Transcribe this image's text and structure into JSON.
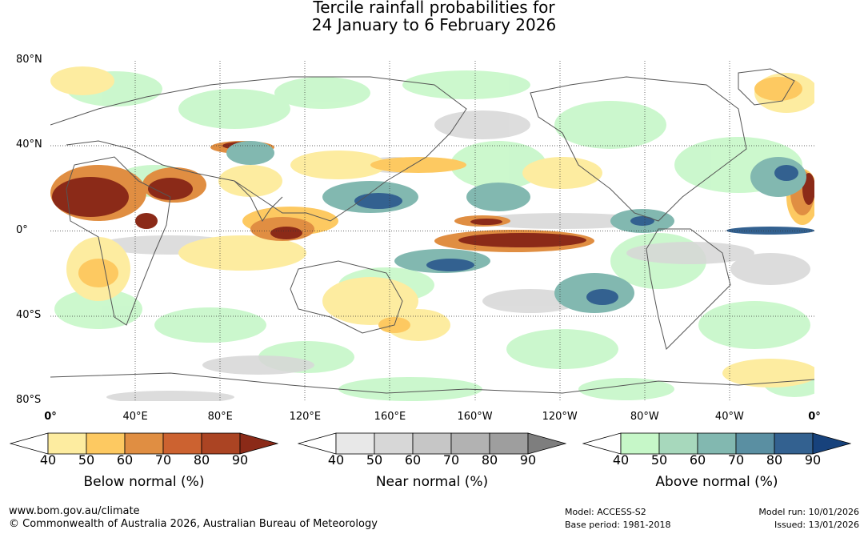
{
  "title": {
    "line1": "Tercile rainfall probabilities for",
    "line2": "24 January to 6 February 2026"
  },
  "axes": {
    "lat_labels": [
      "80°N",
      "40°N",
      "0°",
      "40°S",
      "80°S"
    ],
    "lat_values": [
      80,
      40,
      0,
      -40,
      -80
    ],
    "lon_labels": [
      "0°",
      "40°E",
      "80°E",
      "120°E",
      "160°E",
      "160°W",
      "120°W",
      "80°W",
      "40°W",
      "0°"
    ],
    "lon_values": [
      0,
      40,
      80,
      120,
      160,
      200,
      240,
      280,
      320,
      360
    ],
    "lat_range": [
      -80,
      80
    ],
    "lon_range": [
      0,
      360
    ]
  },
  "legends": [
    {
      "label": "Below normal (%)",
      "ticks": [
        "40",
        "50",
        "60",
        "70",
        "80",
        "90"
      ],
      "colors": [
        "#ffffff",
        "#fdeca0",
        "#fdc961",
        "#e08e42",
        "#cc6230",
        "#ab4423",
        "#8b2a18"
      ]
    },
    {
      "label": "Near normal (%)",
      "ticks": [
        "40",
        "50",
        "60",
        "70",
        "80",
        "90"
      ],
      "colors": [
        "#ffffff",
        "#e8e8e8",
        "#d7d7d7",
        "#c6c6c6",
        "#b2b2b2",
        "#9e9e9e",
        "#7e7e7e"
      ]
    },
    {
      "label": "Above normal (%)",
      "ticks": [
        "40",
        "50",
        "60",
        "70",
        "80",
        "90"
      ],
      "colors": [
        "#ffffff",
        "#c6f7c8",
        "#a7d8bc",
        "#82b8b0",
        "#5a8fa2",
        "#336190",
        "#17427c"
      ]
    }
  ],
  "footer": {
    "url": "www.bom.gov.au/climate",
    "copyright": "© Commonwealth of Australia 2026, Australian Bureau of Meteorology",
    "model": "Model: ACCESS-S2",
    "base_period": "Base period: 1981-2018",
    "model_run": "Model run: 10/01/2026",
    "issued": "Issued: 13/01/2026"
  }
}
